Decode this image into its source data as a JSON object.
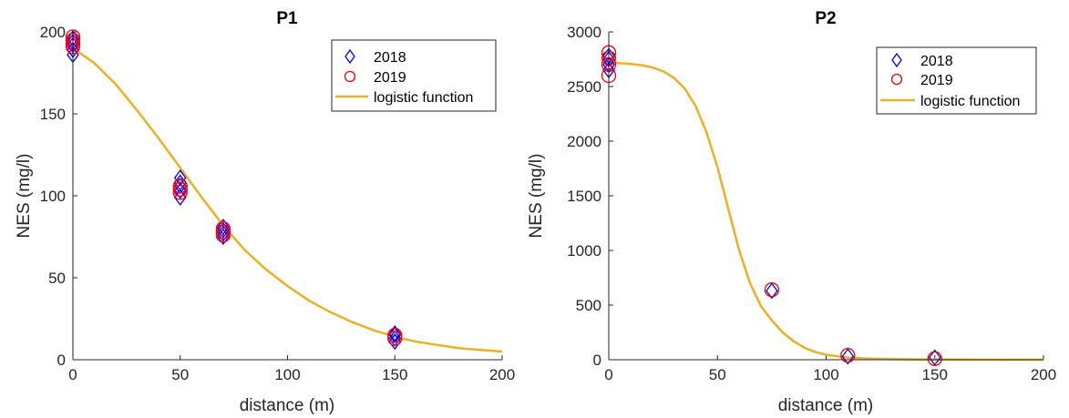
{
  "chart_data": [
    {
      "type": "scatter",
      "title": "P1",
      "xlabel": "distance (m)",
      "ylabel": "NES (mg/l)",
      "xlim": [
        0,
        200
      ],
      "ylim": [
        0,
        200
      ],
      "xticks": [
        "0",
        "50",
        "100",
        "150",
        "200"
      ],
      "yticks": [
        "0",
        "50",
        "100",
        "150",
        "200"
      ],
      "grid": false,
      "legend_position": "top-right",
      "series": [
        {
          "name": "2018",
          "marker": "diamond",
          "color": "#0000ff",
          "points": [
            [
              0,
              186
            ],
            [
              0,
              189
            ],
            [
              0,
              192
            ],
            [
              0,
              194
            ],
            [
              0,
              196
            ],
            [
              50,
              99
            ],
            [
              50,
              103
            ],
            [
              50,
              106
            ],
            [
              50,
              108
            ],
            [
              50,
              111
            ],
            [
              70,
              75
            ],
            [
              70,
              77
            ],
            [
              70,
              79
            ],
            [
              70,
              81
            ],
            [
              150,
              11
            ],
            [
              150,
              13
            ],
            [
              150,
              15
            ],
            [
              150,
              16
            ]
          ]
        },
        {
          "name": "2019",
          "marker": "circle",
          "color": "#ff0000",
          "points": [
            [
              0,
              191
            ],
            [
              0,
              193
            ],
            [
              0,
              195
            ],
            [
              0,
              197
            ],
            [
              50,
              102
            ],
            [
              50,
              104
            ],
            [
              50,
              106
            ],
            [
              70,
              76
            ],
            [
              70,
              78
            ],
            [
              70,
              80
            ],
            [
              150,
              13
            ],
            [
              150,
              15
            ]
          ]
        },
        {
          "name": "logistic function",
          "type": "line",
          "color": "#edb120",
          "x": [
            0,
            10,
            20,
            30,
            40,
            50,
            60,
            70,
            80,
            90,
            100,
            110,
            120,
            130,
            140,
            150,
            160,
            170,
            180,
            190,
            200
          ],
          "y": [
            190,
            181,
            168,
            152,
            135,
            117,
            99,
            82,
            67,
            55,
            45,
            36,
            29,
            23,
            18,
            14,
            11,
            9,
            7,
            6,
            5
          ]
        }
      ]
    },
    {
      "type": "scatter",
      "title": "P2",
      "xlabel": "distance (m)",
      "ylabel": "NES (mg/l)",
      "xlim": [
        0,
        200
      ],
      "ylim": [
        0,
        3000
      ],
      "xticks": [
        "0",
        "50",
        "100",
        "150",
        "200"
      ],
      "yticks": [
        "0",
        "500",
        "1000",
        "1500",
        "2000",
        "2500",
        "3000"
      ],
      "grid": false,
      "legend_position": "top-right",
      "series": [
        {
          "name": "2018",
          "marker": "diamond",
          "color": "#0000ff",
          "points": [
            [
              0,
              2650
            ],
            [
              0,
              2700
            ],
            [
              0,
              2750
            ],
            [
              0,
              2780
            ],
            [
              75,
              630
            ],
            [
              110,
              30
            ],
            [
              150,
              20
            ]
          ]
        },
        {
          "name": "2019",
          "marker": "circle",
          "color": "#ff0000",
          "points": [
            [
              0,
              2600
            ],
            [
              0,
              2700
            ],
            [
              0,
              2760
            ],
            [
              0,
              2810
            ],
            [
              75,
              640
            ],
            [
              110,
              40
            ],
            [
              150,
              10
            ]
          ]
        },
        {
          "name": "logistic function",
          "type": "line",
          "color": "#edb120",
          "x": [
            0,
            5,
            10,
            15,
            20,
            25,
            30,
            35,
            40,
            45,
            50,
            55,
            60,
            65,
            70,
            75,
            80,
            85,
            90,
            95,
            100,
            110,
            120,
            130,
            140,
            150,
            160,
            180,
            200
          ],
          "y": [
            2717,
            2713,
            2706,
            2695,
            2675,
            2640,
            2580,
            2480,
            2320,
            2080,
            1760,
            1380,
            1000,
            700,
            490,
            360,
            250,
            170,
            110,
            70,
            45,
            20,
            10,
            5,
            3,
            2,
            1,
            0,
            0
          ]
        }
      ]
    }
  ]
}
